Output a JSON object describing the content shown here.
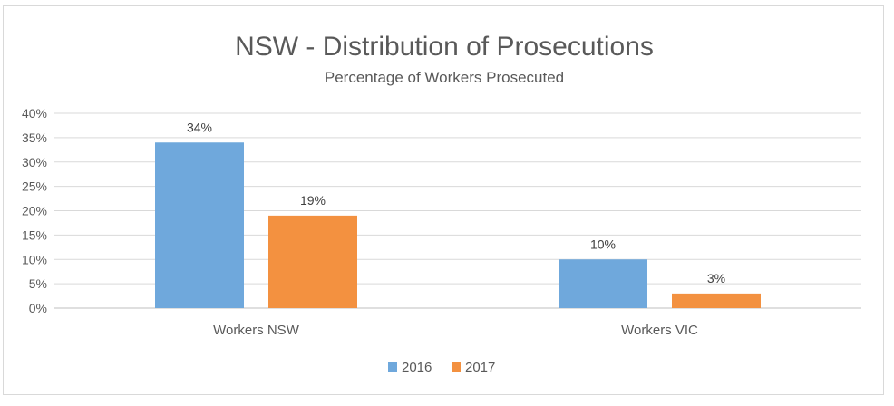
{
  "chart_data": {
    "type": "bar",
    "title": "NSW - Distribution of Prosecutions",
    "subtitle": "Percentage of Workers Prosecuted",
    "categories": [
      "Workers NSW",
      "Workers VIC"
    ],
    "series": [
      {
        "name": "2016",
        "values": [
          34,
          10
        ],
        "labels": [
          "34%",
          "10%"
        ],
        "color": "#6fa8dc"
      },
      {
        "name": "2017",
        "values": [
          19,
          3
        ],
        "labels": [
          "19%",
          "3%"
        ],
        "color": "#f39140"
      }
    ],
    "y_ticks": [
      "0%",
      "5%",
      "10%",
      "15%",
      "20%",
      "25%",
      "30%",
      "35%",
      "40%"
    ],
    "ylim": [
      0,
      40
    ],
    "grid": true,
    "legend_position": "bottom"
  }
}
